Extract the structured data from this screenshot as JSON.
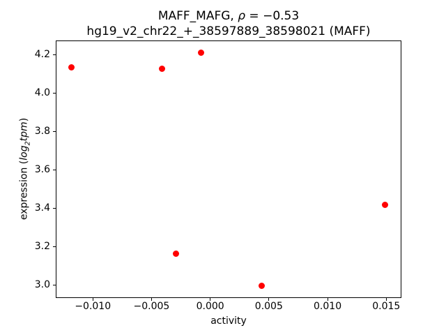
{
  "chart_data": {
    "type": "scatter",
    "title": "MAFF_MAFG, ρ = −0.53",
    "subtitle": "hg19_v2_chr22_+_38597889_38598021 (MAFF)",
    "title_line1_prefix": "MAFF_MAFG, ",
    "title_rho": "ρ",
    "title_line1_suffix": " = −0.53",
    "title_line2": "hg19_v2_chr22_+_38597889_38598021 (MAFF)",
    "xlabel": "activity",
    "ylabel_prefix": "expression (",
    "ylabel_log": "log",
    "ylabel_sub": "2",
    "ylabel_tpm": "tpm",
    "ylabel_suffix": ")",
    "marker_color": "#ff0000",
    "axis_color": "#000000",
    "background_color": "#ffffff",
    "legend": "none",
    "grid": false,
    "xlim": [
      -0.01316,
      0.01629
    ],
    "ylim": [
      2.934,
      4.274
    ],
    "x_ticks": {
      "values": [
        -0.01,
        -0.005,
        0.0,
        0.005,
        0.01,
        0.015
      ],
      "labels": [
        "−0.010",
        "−0.005",
        "0.000",
        "0.005",
        "0.010",
        "0.015"
      ]
    },
    "y_ticks": {
      "values": [
        3.0,
        3.2,
        3.4,
        3.6,
        3.8,
        4.0,
        4.2
      ],
      "labels": [
        "3.0",
        "3.2",
        "3.4",
        "3.6",
        "3.8",
        "4.0",
        "4.2"
      ]
    },
    "points": [
      {
        "x": -0.0118,
        "y": 4.136
      },
      {
        "x": -0.0041,
        "y": 4.127
      },
      {
        "x": -0.0008,
        "y": 4.211
      },
      {
        "x": -0.0029,
        "y": 3.163
      },
      {
        "x": 0.0044,
        "y": 2.998
      },
      {
        "x": 0.0149,
        "y": 3.419
      }
    ]
  }
}
